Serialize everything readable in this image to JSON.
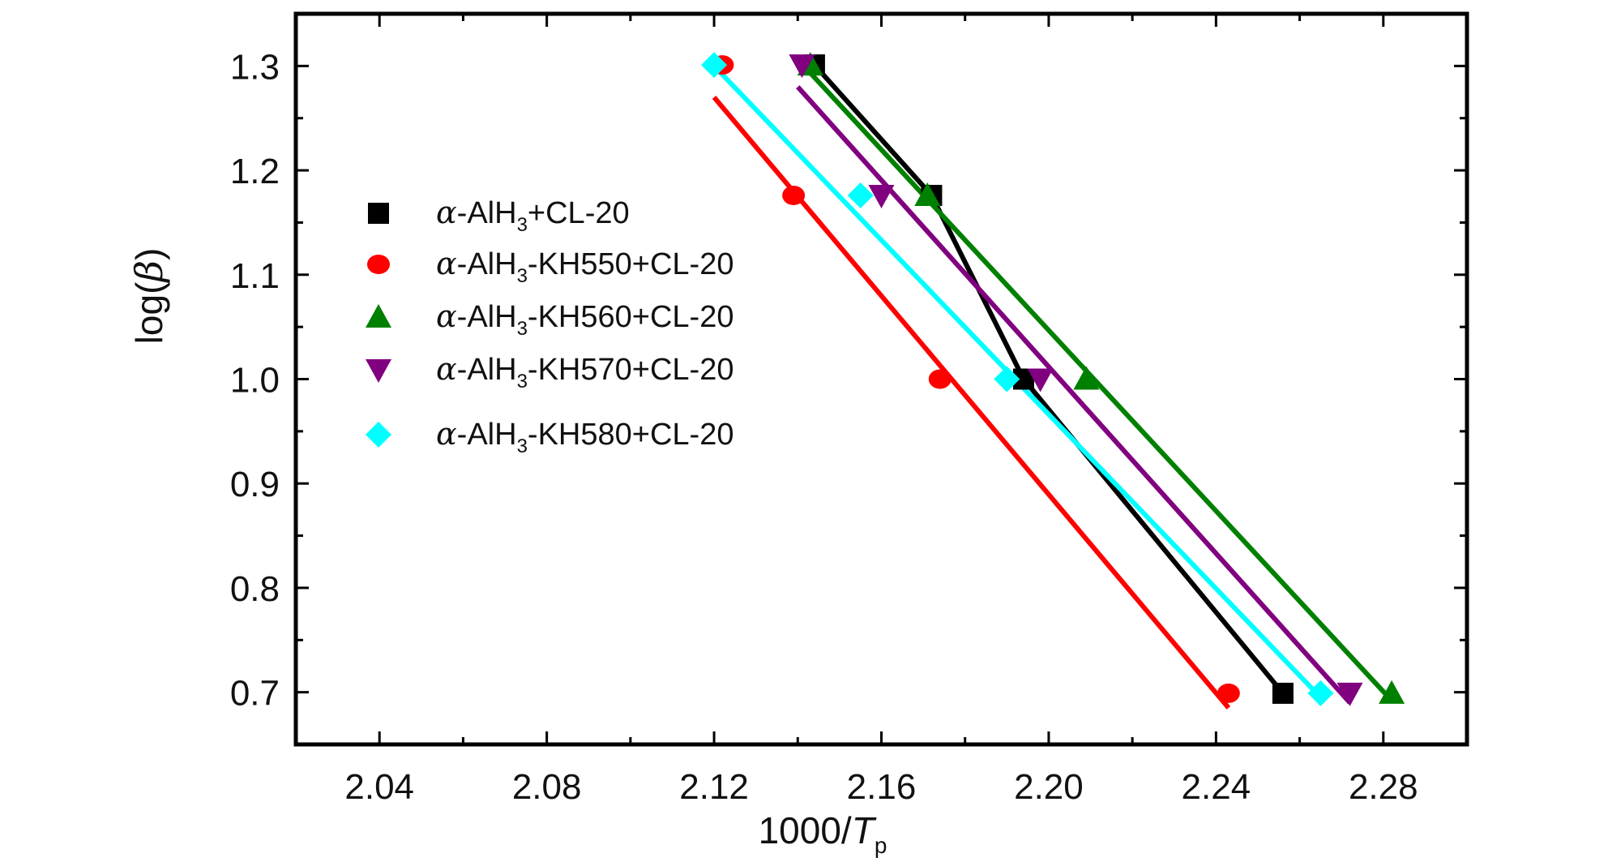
{
  "chart_data": {
    "type": "scatter",
    "xlabel": {
      "main": "1000/",
      "italic": "T",
      "sub": "p"
    },
    "ylabel": {
      "pre": "log(",
      "greek": "β",
      "post": ")"
    },
    "xlim": [
      2.02,
      2.3
    ],
    "ylim": [
      0.65,
      1.35
    ],
    "xticks": [
      2.04,
      2.08,
      2.12,
      2.16,
      2.2,
      2.24,
      2.28
    ],
    "xtick_labels": [
      "2.04",
      "2.08",
      "2.12",
      "2.16",
      "2.20",
      "2.24",
      "2.28"
    ],
    "yticks": [
      0.7,
      0.8,
      0.9,
      1.0,
      1.1,
      1.2,
      1.3
    ],
    "ytick_labels": [
      "0.7",
      "0.8",
      "0.9",
      "1.0",
      "1.1",
      "1.2",
      "1.3"
    ],
    "legend_position": "left",
    "series": [
      {
        "name": "α-AlH3+CL-20",
        "legend": {
          "greek": "α",
          "a": "-AlH",
          "sub": "3",
          "b": "+CL-20"
        },
        "color": "#000000",
        "marker": "square",
        "x": [
          2.144,
          2.172,
          2.194,
          2.256
        ],
        "y": [
          1.301,
          1.176,
          1.0,
          0.699
        ],
        "fit": "connect"
      },
      {
        "name": "α-AlH3-KH550+CL-20",
        "legend": {
          "greek": "α",
          "a": "-AlH",
          "sub": "3",
          "b": "-KH550+CL-20"
        },
        "color": "#ff0000",
        "marker": "circle",
        "x": [
          2.122,
          2.139,
          2.174,
          2.243
        ],
        "y": [
          1.301,
          1.176,
          1.0,
          0.699
        ],
        "fit": {
          "x1": 2.12,
          "y1": 1.27,
          "x2": 2.243,
          "y2": 0.685
        }
      },
      {
        "name": "α-AlH3-KH560+CL-20",
        "legend": {
          "greek": "α",
          "a": "-AlH",
          "sub": "3",
          "b": "-KH560+CL-20"
        },
        "color": "#008000",
        "marker": "triangle-up",
        "x": [
          2.143,
          2.171,
          2.209,
          2.282
        ],
        "y": [
          1.301,
          1.176,
          1.0,
          0.699
        ],
        "fit": {
          "x1": 2.141,
          "y1": 1.302,
          "x2": 2.282,
          "y2": 0.692
        }
      },
      {
        "name": "α-AlH3-KH570+CL-20",
        "legend": {
          "greek": "α",
          "a": "-AlH",
          "sub": "3",
          "b": "-KH570+CL-20"
        },
        "color": "#800080",
        "marker": "triangle-down",
        "x": [
          2.141,
          2.16,
          2.198,
          2.272
        ],
        "y": [
          1.301,
          1.176,
          1.0,
          0.699
        ],
        "fit": {
          "x1": 2.14,
          "y1": 1.28,
          "x2": 2.272,
          "y2": 0.69
        }
      },
      {
        "name": "α-AlH3-KH580+CL-20",
        "legend": {
          "greek": "α",
          "a": "-AlH",
          "sub": "3",
          "b": "-KH580+CL-20"
        },
        "color": "#00ffff",
        "marker": "diamond",
        "x": [
          2.12,
          2.155,
          2.19,
          2.265
        ],
        "y": [
          1.301,
          1.176,
          1.0,
          0.699
        ],
        "fit": {
          "x1": 2.12,
          "y1": 1.3,
          "x2": 2.265,
          "y2": 0.695
        }
      }
    ]
  }
}
